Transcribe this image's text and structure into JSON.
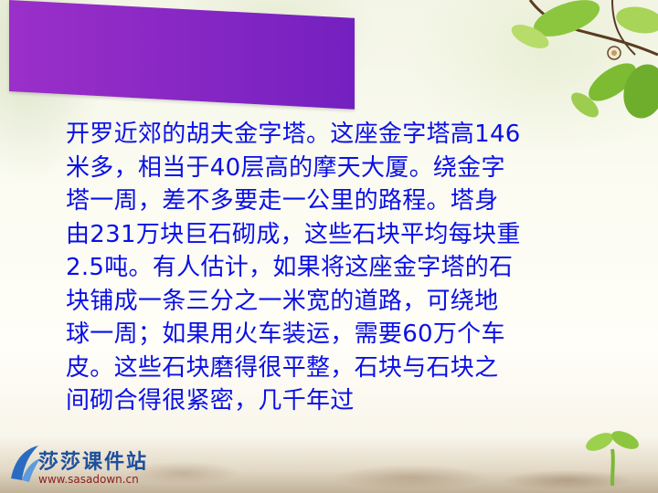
{
  "slide": {
    "body_text": "开罗近郊的胡夫金字塔。这座金字塔高146\n米多，相当于40层高的摩天大厦。绕金字\n塔一周，差不多要走一公里的路程。塔身\n由231万块巨石砌成，这些石块平均每块重\n2.5吨。有人估计，如果将这座金字塔的石\n块铺成一条三分之一米宽的道路，可绕地\n球一周；如果用火车装运，需要60万个车\n皮。这些石块磨得很平整，石块与石块之\n间砌合得很紧密，几千年过"
  },
  "logo": {
    "title": "莎莎课件站",
    "url": "www.sasadown.cn"
  },
  "colors": {
    "text": "#0a10e6",
    "panel": "#7a22c2",
    "logo_title": "#1d4f9c",
    "logo_url": "#8a1d1d"
  },
  "icons": [
    "branch-leaves-decoration",
    "sprout-decoration",
    "logo-mark-icon"
  ]
}
